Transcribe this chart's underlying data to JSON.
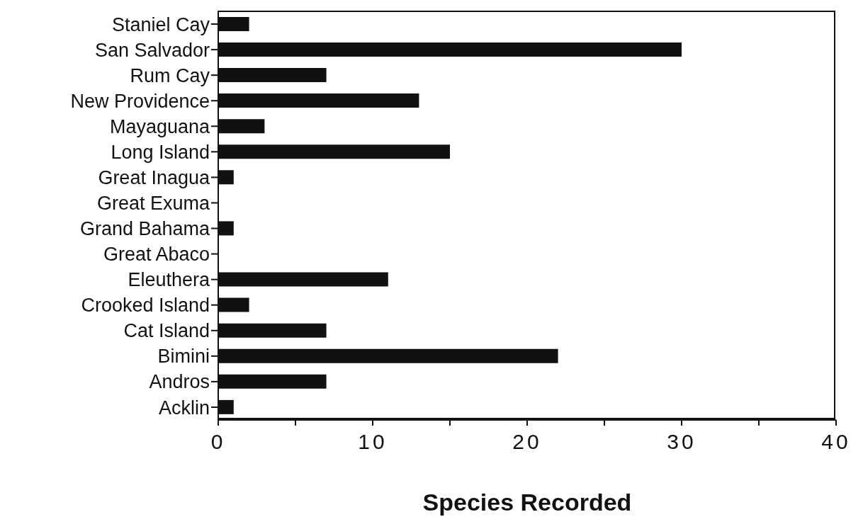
{
  "chart_data": {
    "type": "bar",
    "orientation": "horizontal",
    "xlabel": "Species Recorded",
    "categories": [
      "Staniel Cay",
      "San  Salvador",
      "Rum Cay",
      "New Providence",
      "Mayaguana",
      "Long Island",
      "Great Inagua",
      "Great   Exuma",
      "Grand  Bahama",
      "Great Abaco",
      "Eleuthera",
      "Crooked Island",
      "Cat  Island",
      "Bimini",
      "Andros",
      "Acklin"
    ],
    "values": [
      2,
      30,
      7,
      13,
      3,
      15,
      1,
      0,
      1,
      0,
      11,
      2,
      7,
      22,
      7,
      1
    ],
    "color": "#111111",
    "xlim": [
      0,
      40
    ],
    "xticks": [
      0,
      {
        "value": 5,
        "label": null
      },
      10,
      {
        "value": 15,
        "label": null
      },
      20,
      {
        "value": 25,
        "label": null
      },
      30,
      {
        "value": 35,
        "label": null
      },
      40
    ]
  }
}
